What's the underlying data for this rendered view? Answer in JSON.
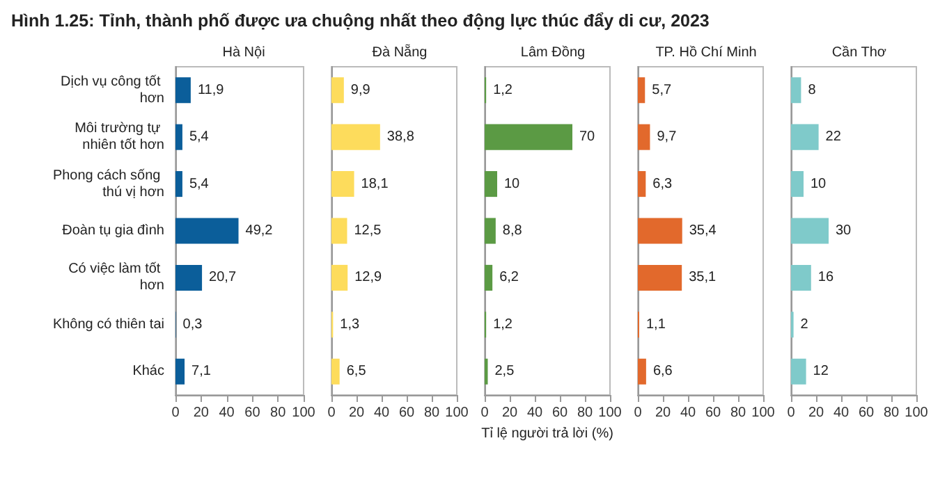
{
  "chart_data": [
    {
      "type": "bar",
      "orientation": "horizontal",
      "title": "Hà Nội",
      "annotations": [
        "Hình 1.25: Tỉnh, thành phố được ưa chuộng nhất theo động lực thúc đẩy di cư, 2023"
      ],
      "categories": [
        "Dịch vụ công tốt hơn",
        "Môi trường tự nhiên tốt hơn",
        "Phong cách sống thú vị hơn",
        "Đoàn tụ gia đình",
        "Có việc làm tốt hơn",
        "Không có thiên tai",
        "Khác"
      ],
      "values": [
        11.9,
        5.4,
        5.4,
        49.2,
        20.7,
        0.3,
        7.1
      ],
      "value_labels": [
        "11,9",
        "5,4",
        "5,4",
        "49,2",
        "20,7",
        "0,3",
        "7,1"
      ],
      "color": "#0b5e9a",
      "xlim": [
        0,
        100
      ],
      "xticks": [
        0,
        20,
        40,
        60,
        80,
        100
      ],
      "grid": false
    },
    {
      "type": "bar",
      "orientation": "horizontal",
      "title": "Đà Nẵng",
      "categories": [
        "Dịch vụ công tốt hơn",
        "Môi trường tự nhiên tốt hơn",
        "Phong cách sống thú vị hơn",
        "Đoàn tụ gia đình",
        "Có việc làm tốt hơn",
        "Không có thiên tai",
        "Khác"
      ],
      "values": [
        9.9,
        38.8,
        18.1,
        12.5,
        12.9,
        1.3,
        6.5
      ],
      "value_labels": [
        "9,9",
        "38,8",
        "18,1",
        "12,5",
        "12,9",
        "1,3",
        "6,5"
      ],
      "color": "#fddc5c",
      "xlim": [
        0,
        100
      ],
      "xticks": [
        0,
        20,
        40,
        60,
        80,
        100
      ],
      "tick_labels": "x",
      "grid": false
    },
    {
      "type": "bar",
      "orientation": "horizontal",
      "title": "Lâm Đồng",
      "xlabel": "Tỉ lệ người trả lời (%)",
      "categories": [
        "Dịch vụ công tốt hơn",
        "Môi trường tự nhiên tốt hơn",
        "Phong cách sống thú vị hơn",
        "Đoàn tụ gia đình",
        "Có việc làm tốt hơn",
        "Không có thiên tai",
        "Khác"
      ],
      "values": [
        1.2,
        70,
        10,
        8.8,
        6.2,
        1.2,
        2.5
      ],
      "value_labels": [
        "1,2",
        "70",
        "10",
        "8,8",
        "6,2",
        "1,2",
        "2,5"
      ],
      "color": "#5b9a44",
      "xlim": [
        0,
        100
      ],
      "xticks": [
        0,
        20,
        40,
        60,
        80,
        100
      ],
      "tick_labels": "x",
      "grid": false
    },
    {
      "type": "bar",
      "orientation": "horizontal",
      "title": "TP. Hồ Chí Minh",
      "categories": [
        "Dịch vụ công tốt hơn",
        "Môi trường tự nhiên tốt hơn",
        "Phong cách sống thú vị hơn",
        "Đoàn tụ gia đình",
        "Có việc làm tốt hơn",
        "Không có thiên tai",
        "Khác"
      ],
      "values": [
        5.7,
        9.7,
        6.3,
        35.4,
        35.1,
        1.1,
        6.6
      ],
      "value_labels": [
        "5,7",
        "9,7",
        "6,3",
        "35,4",
        "35,1",
        "1,1",
        "6,6"
      ],
      "color": "#e2692c",
      "xlim": [
        0,
        100
      ],
      "xticks": [
        0,
        20,
        40,
        60,
        80,
        100
      ],
      "tick_labels": "x",
      "grid": false
    },
    {
      "type": "bar",
      "orientation": "horizontal",
      "title": "Cần Thơ",
      "categories": [
        "Dịch vụ công tốt hơn",
        "Môi trường tự nhiên tốt hơn",
        "Phong cách sống thú vị hơn",
        "Đoàn tụ gia đình",
        "Có việc làm tốt hơn",
        "Không có thiên tai",
        "Khác"
      ],
      "values": [
        8,
        22,
        10,
        30,
        16,
        2,
        12
      ],
      "value_labels": [
        "8",
        "22",
        "10",
        "30",
        "16",
        "2",
        "12"
      ],
      "color": "#7fcaca",
      "xlim": [
        0,
        100
      ],
      "xticks": [
        0,
        20,
        40,
        60,
        80,
        100
      ],
      "tick_labels": "x",
      "grid": false
    }
  ]
}
